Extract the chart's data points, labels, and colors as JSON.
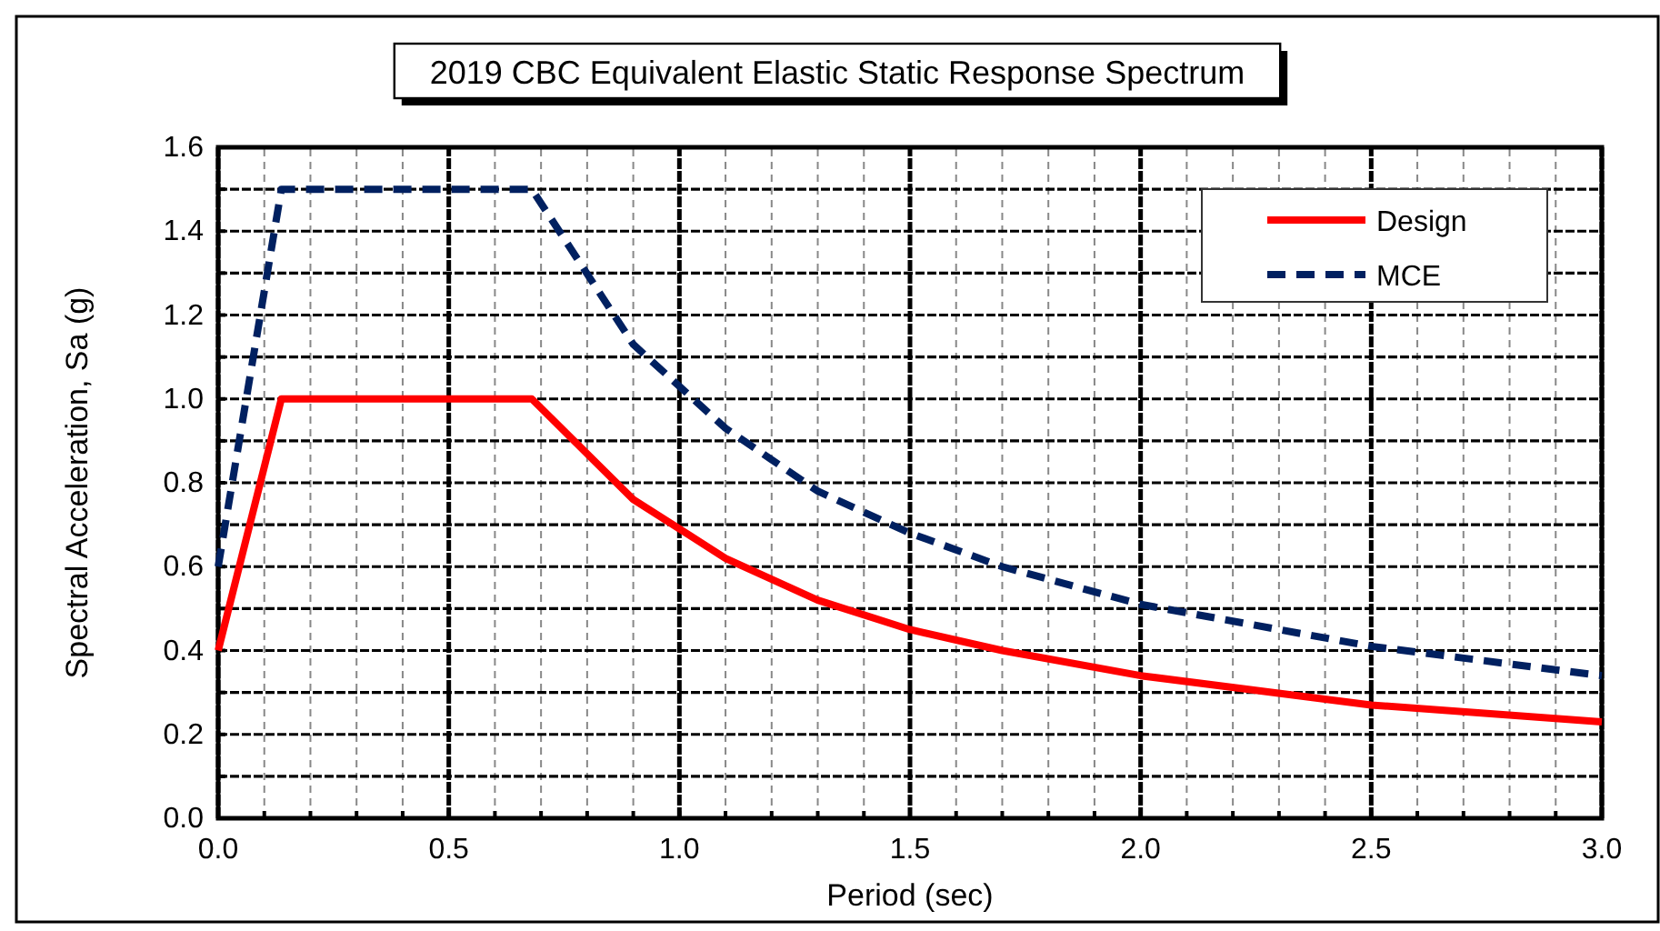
{
  "chart_data": {
    "type": "line",
    "title": "2019 CBC Equivalent Elastic Static Response Spectrum",
    "xlabel": "Period (sec)",
    "ylabel": "Spectral Acceleration, Sa (g)",
    "xlim": [
      0,
      3
    ],
    "ylim": [
      0,
      1.6
    ],
    "xticks": [
      {
        "value": 0,
        "label": "0.0"
      },
      {
        "value": 0.1,
        "label": null
      },
      {
        "value": 0.2,
        "label": null
      },
      {
        "value": 0.3,
        "label": null
      },
      {
        "value": 0.4,
        "label": null
      },
      {
        "value": 0.5,
        "label": "0.5"
      },
      {
        "value": 0.6,
        "label": null
      },
      {
        "value": 0.7,
        "label": null
      },
      {
        "value": 0.8,
        "label": null
      },
      {
        "value": 0.9,
        "label": null
      },
      {
        "value": 1,
        "label": "1.0"
      },
      {
        "value": 1.1,
        "label": null
      },
      {
        "value": 1.2,
        "label": null
      },
      {
        "value": 1.3,
        "label": null
      },
      {
        "value": 1.4,
        "label": null
      },
      {
        "value": 1.5,
        "label": "1.5"
      },
      {
        "value": 1.6,
        "label": null
      },
      {
        "value": 1.7,
        "label": null
      },
      {
        "value": 1.8,
        "label": null
      },
      {
        "value": 1.9,
        "label": null
      },
      {
        "value": 2,
        "label": "2.0"
      },
      {
        "value": 2.1,
        "label": null
      },
      {
        "value": 2.2,
        "label": null
      },
      {
        "value": 2.3,
        "label": null
      },
      {
        "value": 2.4,
        "label": null
      },
      {
        "value": 2.5,
        "label": "2.5"
      },
      {
        "value": 2.6,
        "label": null
      },
      {
        "value": 2.7,
        "label": null
      },
      {
        "value": 2.8,
        "label": null
      },
      {
        "value": 2.9,
        "label": null
      },
      {
        "value": 3,
        "label": "3.0"
      }
    ],
    "yticks": [
      {
        "value": 0,
        "label": "0.0"
      },
      {
        "value": 0.1,
        "label": null
      },
      {
        "value": 0.2,
        "label": "0.2"
      },
      {
        "value": 0.3,
        "label": null
      },
      {
        "value": 0.4,
        "label": "0.4"
      },
      {
        "value": 0.5,
        "label": null
      },
      {
        "value": 0.6,
        "label": "0.6"
      },
      {
        "value": 0.7,
        "label": null
      },
      {
        "value": 0.8,
        "label": "0.8"
      },
      {
        "value": 0.9,
        "label": null
      },
      {
        "value": 1,
        "label": "1.0"
      },
      {
        "value": 1.1,
        "label": null
      },
      {
        "value": 1.2,
        "label": "1.2"
      },
      {
        "value": 1.3,
        "label": null
      },
      {
        "value": 1.4,
        "label": "1.4"
      },
      {
        "value": 1.5,
        "label": null
      },
      {
        "value": 1.6,
        "label": "1.6"
      }
    ],
    "grid": true,
    "legend": "top right",
    "marker": "none",
    "series": [
      {
        "name": "Design",
        "color": "#ff0000",
        "line_style": "solid",
        "x": [
          0,
          0.137,
          0.68,
          0.9,
          1.1,
          1.3,
          1.5,
          1.7,
          2.0,
          2.5,
          3.0
        ],
        "values": [
          0.4,
          1.0,
          1.0,
          0.76,
          0.62,
          0.52,
          0.45,
          0.4,
          0.34,
          0.27,
          0.23
        ]
      },
      {
        "name": "MCE",
        "color": "#002060",
        "line_style": "dashed",
        "x": [
          0,
          0.137,
          0.68,
          0.9,
          1.1,
          1.3,
          1.5,
          1.7,
          2.0,
          2.5,
          3.0
        ],
        "values": [
          0.6,
          1.5,
          1.5,
          1.13,
          0.93,
          0.78,
          0.68,
          0.6,
          0.51,
          0.41,
          0.34
        ]
      }
    ]
  }
}
